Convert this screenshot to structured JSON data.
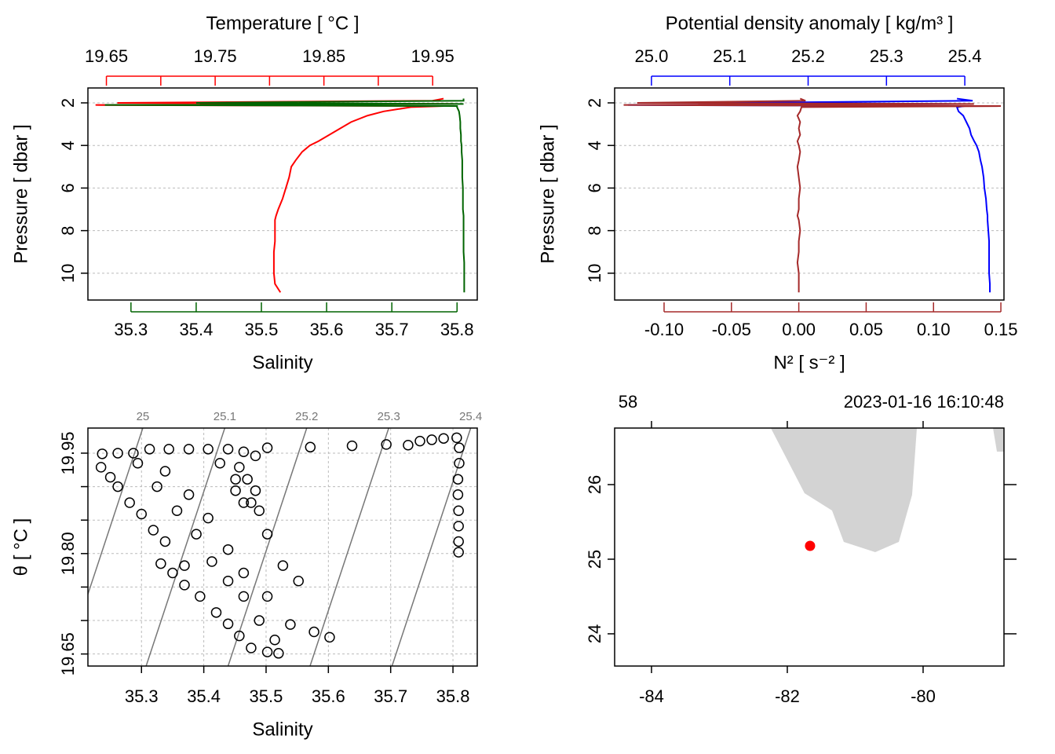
{
  "chart_data": [
    {
      "type": "profile",
      "ylabel": "Pressure [ dbar ]",
      "ylim": [
        11.26,
        1.3
      ],
      "yticks": [
        2,
        4,
        6,
        8,
        10
      ],
      "grid": true,
      "pressure": [
        1.8,
        1.9,
        2.0,
        2.05,
        2.1,
        2.15,
        2.2,
        2.4,
        2.6,
        2.9,
        3.2,
        3.5,
        3.8,
        4.0,
        4.3,
        4.7,
        5.0,
        5.5,
        6.0,
        6.5,
        7.0,
        7.3,
        7.5,
        8.0,
        8.5,
        9.0,
        9.5,
        10.0,
        10.5,
        10.9
      ],
      "top_axis": {
        "label": "Temperature [ °C ]",
        "color": "#ff0000",
        "lim": [
          19.633,
          19.991
        ],
        "ticks": [
          19.65,
          19.75,
          19.85,
          19.95
        ],
        "minor_ticks": [
          19.7,
          19.8,
          19.9
        ]
      },
      "bottom_axis": {
        "label": "Salinity",
        "color": "#006400",
        "lim": [
          35.234,
          35.831
        ],
        "ticks": [
          35.3,
          35.4,
          35.5,
          35.6,
          35.7,
          35.8
        ],
        "minor_ticks": []
      },
      "series": [
        {
          "axis": "top",
          "color": "#ff0000",
          "values": [
            19.96,
            19.95,
            19.66,
            19.97,
            19.64,
            19.96,
            19.93,
            19.905,
            19.89,
            19.875,
            19.865,
            19.855,
            19.845,
            19.837,
            19.83,
            19.824,
            19.82,
            19.818,
            19.815,
            19.812,
            19.808,
            19.806,
            19.805,
            19.805,
            19.805,
            19.804,
            19.804,
            19.804,
            19.805,
            19.81
          ]
        },
        {
          "axis": "bottom",
          "color": "#006400",
          "values": [
            35.81,
            35.81,
            35.4,
            35.81,
            35.26,
            35.8,
            35.8,
            35.803,
            35.804,
            35.805,
            35.805,
            35.806,
            35.806,
            35.807,
            35.807,
            35.808,
            35.808,
            35.808,
            35.809,
            35.809,
            35.809,
            35.81,
            35.81,
            35.81,
            35.81,
            35.81,
            35.811,
            35.811,
            35.811,
            35.811
          ]
        }
      ]
    },
    {
      "type": "profile",
      "ylabel": "Pressure [ dbar ]",
      "ylim": [
        11.26,
        1.3
      ],
      "yticks": [
        2,
        4,
        6,
        8,
        10
      ],
      "grid": true,
      "pressure": [
        1.8,
        1.9,
        2.0,
        2.05,
        2.1,
        2.15,
        2.2,
        2.4,
        2.6,
        2.9,
        3.2,
        3.5,
        3.8,
        4.0,
        4.3,
        4.7,
        5.0,
        5.5,
        6.0,
        6.5,
        7.0,
        7.3,
        7.5,
        8.0,
        8.5,
        9.0,
        9.5,
        10.0,
        10.5,
        10.9
      ],
      "top_axis": {
        "label": "Potential density anomaly [ kg/m³ ]",
        "color": "#0000ff",
        "lim": [
          24.953,
          25.45
        ],
        "ticks": [
          {
            "value": 25,
            "label": "25.0"
          },
          25.1,
          25.2,
          25.3,
          25.4
        ],
        "minor_ticks": []
      },
      "bottom_axis": {
        "label": "N² [ s⁻² ]",
        "color": "#a52a2a",
        "lim": [
          -0.1367,
          0.1523
        ],
        "ticks": [
          {
            "value": -0.1,
            "label": "-0.10"
          },
          -0.05,
          {
            "value": 0,
            "label": "0.00"
          },
          0.05,
          {
            "value": 0.1,
            "label": "0.10"
          },
          0.15
        ],
        "minor_ticks": []
      },
      "series": [
        {
          "axis": "top",
          "color": "#0000ff",
          "values": [
            25.39,
            25.41,
            25.1,
            25.38,
            24.97,
            25.4,
            25.39,
            25.392,
            25.398,
            25.402,
            25.406,
            25.408,
            25.412,
            25.415,
            25.418,
            25.42,
            25.422,
            25.424,
            25.425,
            25.427,
            25.428,
            25.429,
            25.429,
            25.43,
            25.431,
            25.431,
            25.431,
            25.431,
            25.432,
            25.432
          ]
        },
        {
          "axis": "bottom",
          "color": "#a52a2a",
          "values": [
            0.001,
            0.005,
            -0.12,
            0.13,
            -0.13,
            0.15,
            0.002,
            0.001,
            -0.001,
            0.001,
            0,
            0.001,
            -0.001,
            0,
            0.001,
            0,
            -0.001,
            0,
            0.001,
            0,
            0,
            -0.001,
            0,
            0.001,
            0,
            0,
            -0.001,
            0,
            0,
            0
          ]
        }
      ]
    },
    {
      "type": "ts",
      "xlabel": "Salinity",
      "ylabel": "θ [ °C ]",
      "xlim": [
        35.214,
        35.839
      ],
      "ylim": [
        19.632,
        19.9875
      ],
      "xticks": [
        35.3,
        35.4,
        35.5,
        35.6,
        35.7,
        35.8
      ],
      "yticks": [
        19.65,
        {
          "value": 19.8,
          "label": "19.80"
        },
        19.95
      ],
      "minor_yticks": [
        19.7,
        19.75,
        19.85,
        19.9
      ],
      "grid": true,
      "isopycnals": [
        25,
        25.1,
        25.2,
        25.3,
        25.4
      ],
      "x": [
        35.806,
        35.81,
        35.81,
        35.808,
        35.808,
        35.809,
        35.809,
        35.809,
        35.809,
        35.728,
        35.747,
        35.766,
        35.785,
        35.693,
        35.638,
        35.571,
        35.502,
        35.237,
        35.262,
        35.287,
        35.313,
        35.344,
        35.376,
        35.407,
        35.439,
        35.464,
        35.483,
        35.235,
        35.25,
        35.262,
        35.281,
        35.3,
        35.319,
        35.338,
        35.369,
        35.294,
        35.325,
        35.357,
        35.388,
        35.413,
        35.439,
        35.464,
        35.489,
        35.514,
        35.52,
        35.338,
        35.376,
        35.407,
        35.439,
        35.464,
        35.502,
        35.539,
        35.577,
        35.602,
        35.426,
        35.451,
        35.476,
        35.502,
        35.527,
        35.552,
        35.331,
        35.35,
        35.369,
        35.394,
        35.42,
        35.439,
        35.457,
        35.476,
        35.502,
        35.457,
        35.47,
        35.483,
        35.464,
        35.489,
        35.451
      ],
      "y": [
        19.973,
        19.958,
        19.935,
        19.911,
        19.888,
        19.864,
        19.841,
        19.818,
        19.802,
        19.962,
        19.968,
        19.97,
        19.972,
        19.963,
        19.961,
        19.959,
        19.958,
        19.949,
        19.95,
        19.95,
        19.956,
        19.956,
        19.956,
        19.956,
        19.956,
        19.952,
        19.946,
        19.929,
        19.914,
        19.9,
        19.876,
        19.859,
        19.835,
        19.818,
        19.782,
        19.935,
        19.9,
        19.864,
        19.829,
        19.788,
        19.759,
        19.736,
        19.7,
        19.671,
        19.651,
        19.923,
        19.888,
        19.853,
        19.806,
        19.771,
        19.736,
        19.694,
        19.683,
        19.675,
        19.935,
        19.911,
        19.876,
        19.829,
        19.782,
        19.759,
        19.785,
        19.771,
        19.753,
        19.736,
        19.712,
        19.695,
        19.677,
        19.659,
        19.653,
        19.929,
        19.911,
        19.894,
        19.876,
        19.864,
        19.894
      ]
    },
    {
      "type": "map",
      "station": "58",
      "time": "2023-01-16 16:10:48",
      "xlim": [
        -84.543,
        -78.809
      ],
      "ylim": [
        23.568,
        26.758
      ],
      "xticks": [
        -84,
        -82,
        -80
      ],
      "yticks": [
        24,
        25,
        26
      ],
      "land_color": "#d3d3d3",
      "point_color": "#ff0000",
      "land": [
        {
          "lon": [
            -82.243,
            -81.746,
            -81.341,
            -81.168,
            -80.705,
            -80.358,
            -80.162,
            -80.092
          ],
          "lat": [
            26.758,
            25.884,
            25.653,
            25.232,
            25.095,
            25.232,
            25.863,
            26.758
          ]
        },
        {
          "lon": [
            -78.971,
            -78.913,
            -78.809,
            -78.809
          ],
          "lat": [
            26.758,
            26.442,
            26.442,
            26.758
          ]
        }
      ],
      "lon": -81.665,
      "lat": 25.179
    }
  ]
}
